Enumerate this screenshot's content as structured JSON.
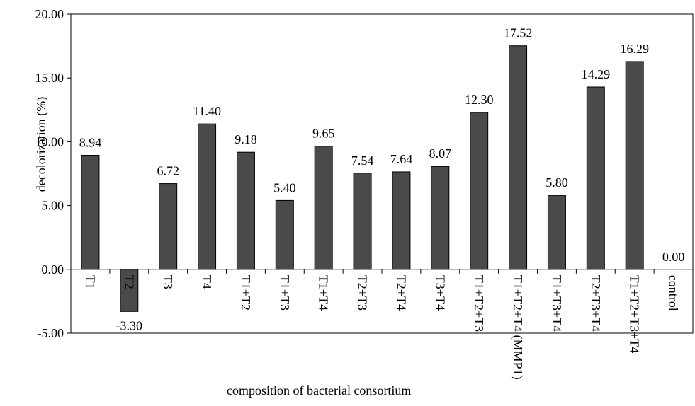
{
  "chart_data": {
    "type": "bar",
    "title": "",
    "xlabel": "composition of bacterial consortium",
    "ylabel": "decolorization (%)",
    "categories": [
      "T1",
      "T2",
      "T3",
      "T4",
      "T1+T2",
      "T1+T3",
      "T1+T4",
      "T2+T3",
      "T2+T4",
      "T3+T4",
      "T1+T2+T3",
      "T1+T2+T4 (MMP1)",
      "T1+T3+T4",
      "T2+T3+T4",
      "T1+T2+T3+T4",
      "control"
    ],
    "values": [
      8.94,
      -3.3,
      6.72,
      11.4,
      9.18,
      5.4,
      9.65,
      7.54,
      7.64,
      8.07,
      12.3,
      17.52,
      5.8,
      14.29,
      16.29,
      0.0
    ],
    "data_labels": [
      "8.94",
      "-3.30",
      "6.72",
      "11.40",
      "9.18",
      "5.40",
      "9.65",
      "7.54",
      "7.64",
      "8.07",
      "12.30",
      "17.52",
      "5.80",
      "14.29",
      "16.29",
      "0.00"
    ],
    "ylim": [
      -5,
      20
    ],
    "yticks": [
      -5,
      0,
      5,
      10,
      15,
      20
    ],
    "ytick_labels": [
      "-5.00",
      "0.00",
      "5.00",
      "10.00",
      "15.00",
      "20.00"
    ],
    "grid": false,
    "legend": "none",
    "bar_color": "#4a4a4a"
  }
}
